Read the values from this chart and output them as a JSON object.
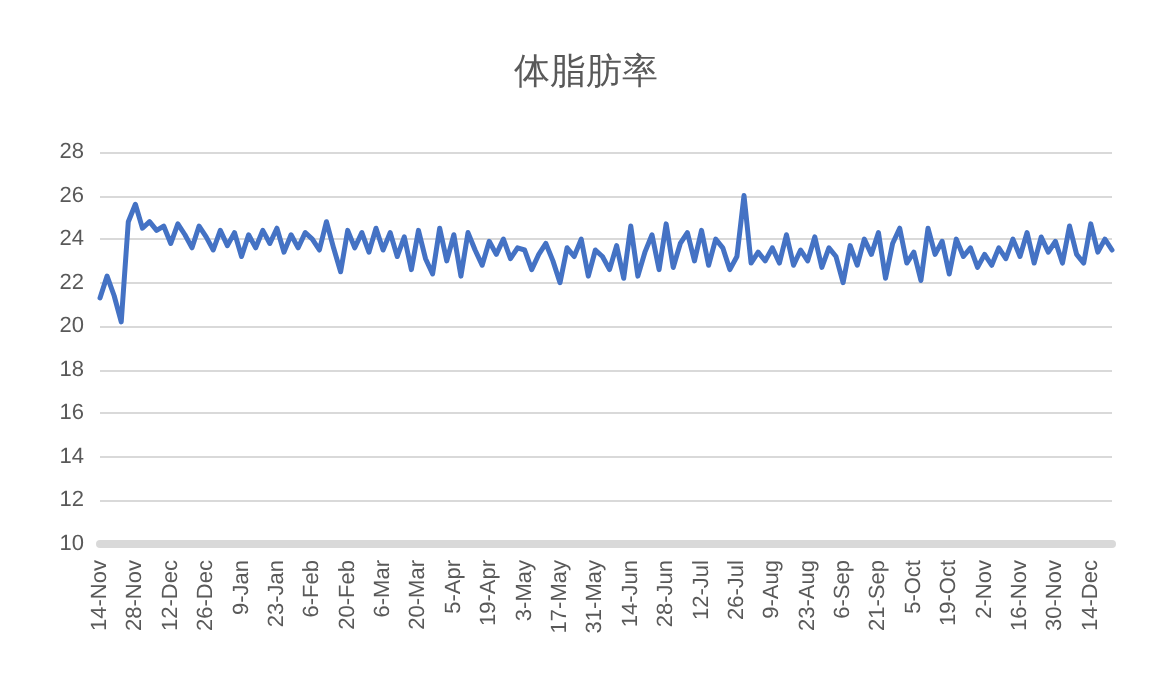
{
  "chart_data": {
    "type": "line",
    "title": "体脂肪率",
    "categories": [
      "14-Nov",
      null,
      null,
      null,
      null,
      "28-Nov",
      null,
      null,
      null,
      null,
      "12-Dec",
      null,
      null,
      null,
      null,
      "26-Dec",
      null,
      null,
      null,
      null,
      "9-Jan",
      null,
      null,
      null,
      null,
      "23-Jan",
      null,
      null,
      null,
      null,
      "6-Feb",
      null,
      null,
      null,
      null,
      "20-Feb",
      null,
      null,
      null,
      null,
      "6-Mar",
      null,
      null,
      null,
      null,
      "20-Mar",
      null,
      null,
      null,
      null,
      "5-Apr",
      null,
      null,
      null,
      null,
      "19-Apr",
      null,
      null,
      null,
      null,
      "3-May",
      null,
      null,
      null,
      null,
      "17-May",
      null,
      null,
      null,
      null,
      "31-May",
      null,
      null,
      null,
      null,
      "14-Jun",
      null,
      null,
      null,
      null,
      "28-Jun",
      null,
      null,
      null,
      null,
      "12-Jul",
      null,
      null,
      null,
      null,
      "26-Jul",
      null,
      null,
      null,
      null,
      "9-Aug",
      null,
      null,
      null,
      null,
      "23-Aug",
      null,
      null,
      null,
      null,
      "6-Sep",
      null,
      null,
      null,
      null,
      "21-Sep",
      null,
      null,
      null,
      null,
      "5-Oct",
      null,
      null,
      null,
      null,
      "19-Oct",
      null,
      null,
      null,
      null,
      "2-Nov",
      null,
      null,
      null,
      null,
      "16-Nov",
      null,
      null,
      null,
      null,
      "30-Nov",
      null,
      null,
      null,
      null,
      "14-Dec",
      null,
      null,
      null
    ],
    "series": [
      {
        "color": "#4472c4",
        "values": [
          21.3,
          22.3,
          21.4,
          20.2,
          24.8,
          25.6,
          24.5,
          24.8,
          24.4,
          24.6,
          23.8,
          24.7,
          24.2,
          23.6,
          24.6,
          24.1,
          23.5,
          24.4,
          23.7,
          24.3,
          23.2,
          24.2,
          23.6,
          24.4,
          23.8,
          24.5,
          23.4,
          24.2,
          23.6,
          24.3,
          24.0,
          23.5,
          24.8,
          23.6,
          22.5,
          24.4,
          23.6,
          24.3,
          23.4,
          24.5,
          23.5,
          24.3,
          23.2,
          24.1,
          22.6,
          24.4,
          23.1,
          22.4,
          24.5,
          23.0,
          24.2,
          22.3,
          24.3,
          23.5,
          22.8,
          23.9,
          23.3,
          24.0,
          23.1,
          23.6,
          23.5,
          22.6,
          23.3,
          23.8,
          23.0,
          22.0,
          23.6,
          23.2,
          24.0,
          22.3,
          23.5,
          23.2,
          22.6,
          23.7,
          22.2,
          24.6,
          22.3,
          23.4,
          24.2,
          22.6,
          24.7,
          22.7,
          23.8,
          24.3,
          23.0,
          24.4,
          22.8,
          24.0,
          23.6,
          22.6,
          23.2,
          26.0,
          22.9,
          23.4,
          23.0,
          23.6,
          22.9,
          24.2,
          22.8,
          23.5,
          23.0,
          24.1,
          22.7,
          23.6,
          23.2,
          22.0,
          23.7,
          22.8,
          24.0,
          23.3,
          24.3,
          22.2,
          23.8,
          24.5,
          22.9,
          23.4,
          22.1,
          24.5,
          23.3,
          23.9,
          22.4,
          24.0,
          23.2,
          23.6,
          22.7,
          23.3,
          22.8,
          23.6,
          23.1,
          24.0,
          23.2,
          24.3,
          22.9,
          24.1,
          23.4,
          23.9,
          22.9,
          24.6,
          23.3,
          22.9,
          24.7,
          23.4,
          24.0,
          23.5
        ]
      }
    ],
    "ylim": [
      10,
      28
    ],
    "yticks": [
      10,
      12,
      14,
      16,
      18,
      20,
      22,
      24,
      26,
      28
    ],
    "grid": "y",
    "marker": "none",
    "line_style": "solid"
  }
}
